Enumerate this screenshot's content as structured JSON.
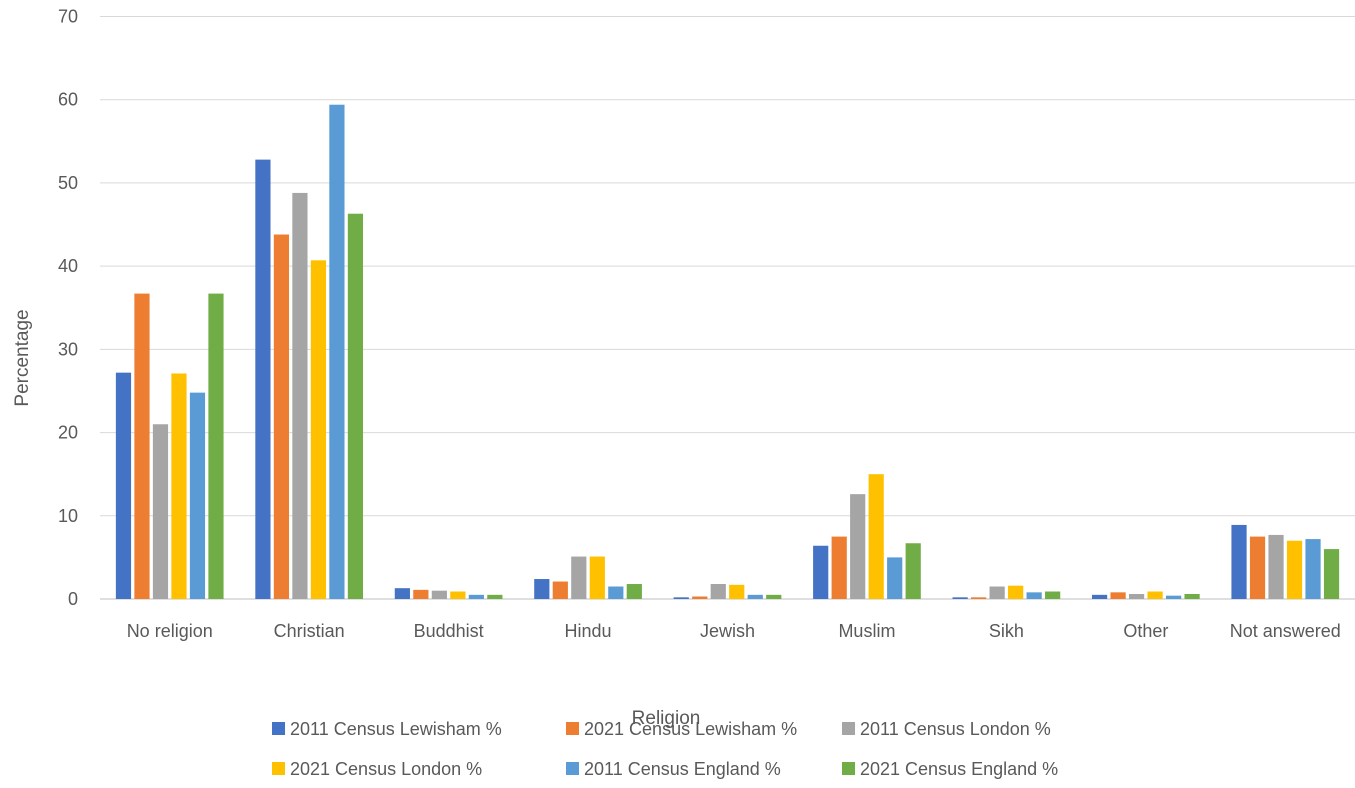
{
  "chart_data": {
    "type": "bar",
    "title": "",
    "xlabel": "Religion",
    "ylabel": "Percentage",
    "ylim": [
      0,
      70
    ],
    "yticks": [
      0,
      10,
      20,
      30,
      40,
      50,
      60,
      70
    ],
    "grid": true,
    "legend_position": "bottom",
    "categories": [
      "No religion",
      "Christian",
      "Buddhist",
      "Hindu",
      "Jewish",
      "Muslim",
      "Sikh",
      "Other",
      "Not answered"
    ],
    "series": [
      {
        "name": "2011 Census Lewisham %",
        "color": "#4472C4",
        "values": [
          27.2,
          52.8,
          1.3,
          2.4,
          0.2,
          6.4,
          0.2,
          0.5,
          8.9
        ]
      },
      {
        "name": "2021 Census Lewisham %",
        "color": "#ED7D31",
        "values": [
          36.7,
          43.8,
          1.1,
          2.1,
          0.3,
          7.5,
          0.2,
          0.8,
          7.5
        ]
      },
      {
        "name": "2011 Census London %",
        "color": "#A5A5A5",
        "values": [
          21.0,
          48.8,
          1.0,
          5.1,
          1.8,
          12.6,
          1.5,
          0.6,
          7.7
        ]
      },
      {
        "name": "2021 Census London %",
        "color": "#FFC000",
        "values": [
          27.1,
          40.7,
          0.9,
          5.1,
          1.7,
          15.0,
          1.6,
          0.9,
          7.0
        ]
      },
      {
        "name": "2011 Census England %",
        "color": "#5B9BD5",
        "values": [
          24.8,
          59.4,
          0.5,
          1.5,
          0.5,
          5.0,
          0.8,
          0.4,
          7.2
        ]
      },
      {
        "name": "2021 Census England %",
        "color": "#70AD47",
        "values": [
          36.7,
          46.3,
          0.5,
          1.8,
          0.5,
          6.7,
          0.9,
          0.6,
          6.0
        ]
      }
    ]
  }
}
